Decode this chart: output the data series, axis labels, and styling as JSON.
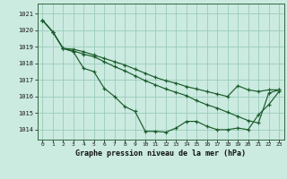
{
  "title": "Graphe pression niveau de la mer (hPa)",
  "background_color": "#cbeae0",
  "grid_color": "#99ccbb",
  "line_color": "#1a5c2a",
  "x_labels": [
    "0",
    "1",
    "2",
    "3",
    "4",
    "5",
    "6",
    "7",
    "8",
    "9",
    "10",
    "11",
    "12",
    "13",
    "14",
    "15",
    "16",
    "17",
    "18",
    "19",
    "20",
    "21",
    "22",
    "23"
  ],
  "ylim": [
    1013.4,
    1021.6
  ],
  "yticks": [
    1014,
    1015,
    1016,
    1017,
    1018,
    1019,
    1020,
    1021
  ],
  "series": [
    [
      1020.6,
      1019.9,
      1018.9,
      1018.7,
      1017.7,
      1017.5,
      1016.5,
      1016.0,
      1015.4,
      1015.1,
      1013.9,
      1013.9,
      1013.85,
      1014.1,
      1014.5,
      1014.5,
      1014.2,
      1014.0,
      1014.0,
      1014.1,
      1014.0,
      1014.9,
      1015.5,
      1016.3
    ],
    [
      1020.6,
      1019.9,
      1018.9,
      1018.75,
      1018.55,
      1018.4,
      1018.1,
      1017.8,
      1017.55,
      1017.25,
      1016.95,
      1016.7,
      1016.45,
      1016.25,
      1016.05,
      1015.75,
      1015.5,
      1015.3,
      1015.05,
      1014.8,
      1014.55,
      1014.4,
      1016.2,
      1016.4
    ],
    [
      1020.6,
      1019.9,
      1018.9,
      1018.85,
      1018.7,
      1018.5,
      1018.3,
      1018.1,
      1017.9,
      1017.65,
      1017.4,
      1017.15,
      1016.95,
      1016.8,
      1016.6,
      1016.45,
      1016.3,
      1016.15,
      1016.0,
      1016.65,
      1016.4,
      1016.3,
      1016.4,
      1016.4
    ]
  ]
}
